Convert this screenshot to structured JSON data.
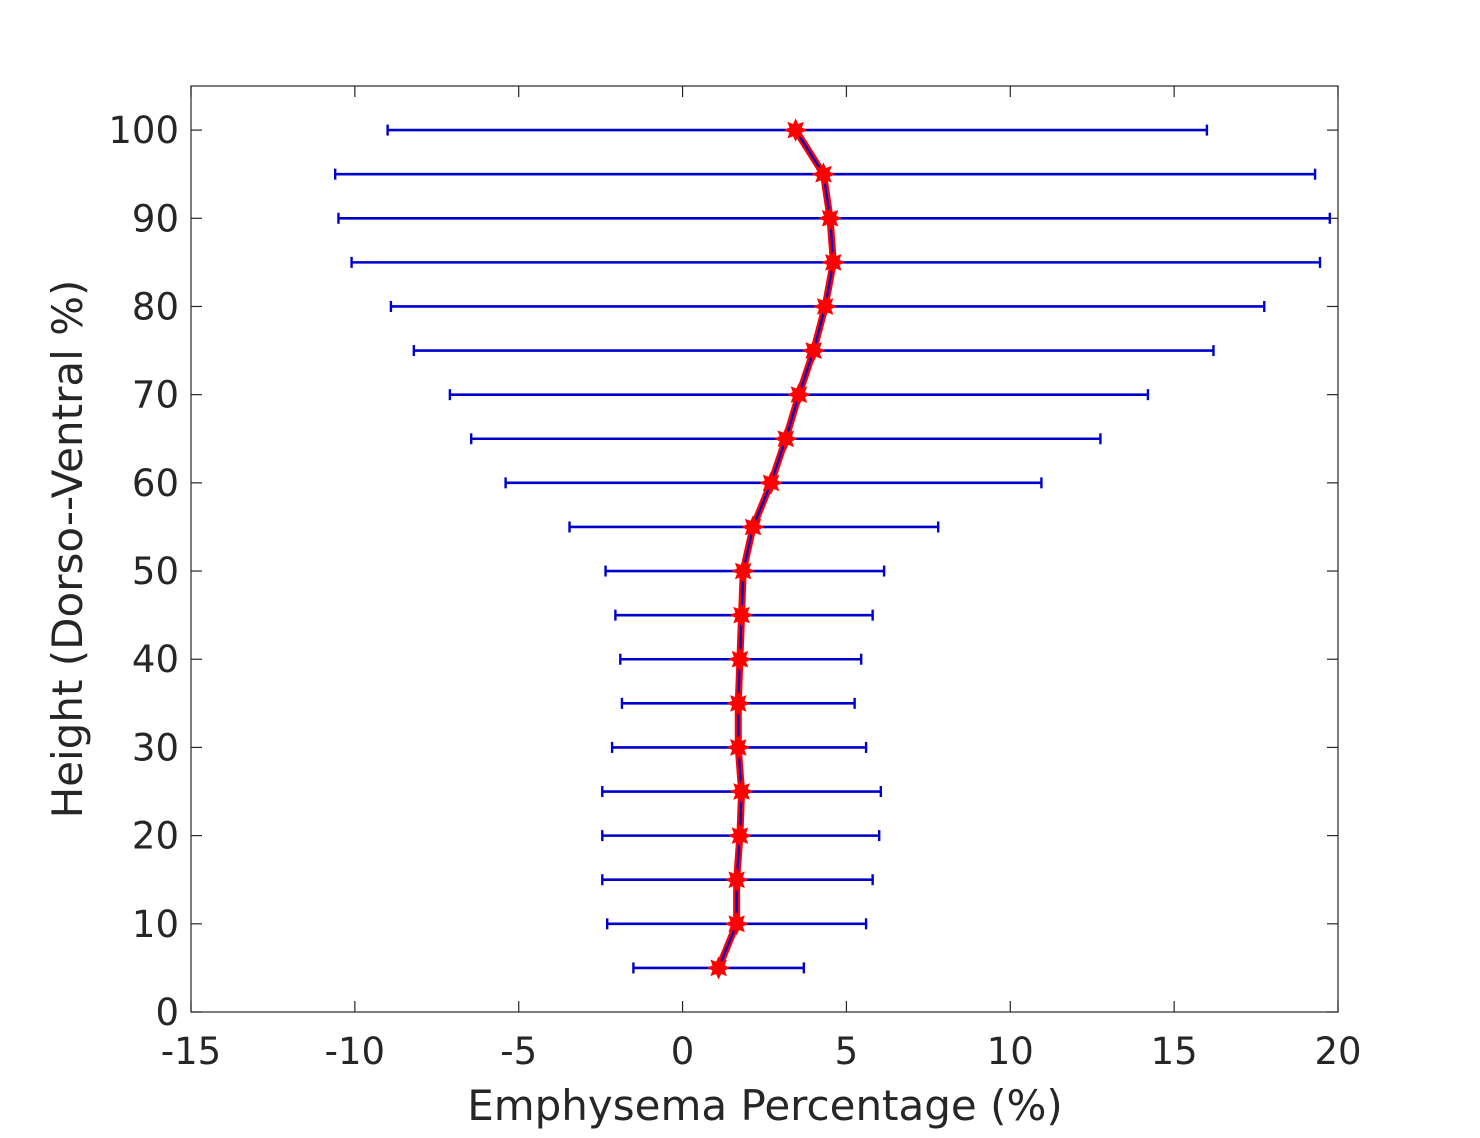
{
  "chart_data": {
    "type": "scatter",
    "title": "",
    "xlabel": "Emphysema Percentage (%)",
    "ylabel": "Height (Dorso--Ventral %)",
    "xlim": [
      -15,
      20
    ],
    "ylim": [
      0,
      105
    ],
    "xticks": [
      -15,
      -10,
      -5,
      0,
      5,
      10,
      15,
      20
    ],
    "yticks": [
      0,
      10,
      20,
      30,
      40,
      50,
      60,
      70,
      80,
      90,
      100
    ],
    "grid": false,
    "legend": "none",
    "colors": {
      "errorbar": "#0000cd",
      "line": "#0000cd",
      "marker": "#ff0000",
      "axis": "#262626"
    },
    "series": [
      {
        "height": [
          5,
          10,
          15,
          20,
          25,
          30,
          35,
          40,
          45,
          50,
          55,
          60,
          65,
          70,
          75,
          80,
          85,
          90,
          95,
          100
        ],
        "mean": [
          1.1,
          1.65,
          1.65,
          1.75,
          1.8,
          1.7,
          1.7,
          1.75,
          1.8,
          1.85,
          2.15,
          2.7,
          3.15,
          3.55,
          4.0,
          4.35,
          4.6,
          4.5,
          4.3,
          3.45
        ],
        "lower": [
          -1.5,
          -2.3,
          -2.45,
          -2.45,
          -2.45,
          -2.15,
          -1.85,
          -1.9,
          -2.05,
          -2.35,
          -3.45,
          -5.4,
          -6.45,
          -7.1,
          -8.2,
          -8.9,
          -10.1,
          -10.5,
          -10.6,
          -9.0
        ],
        "upper": [
          3.7,
          5.6,
          5.8,
          6.0,
          6.05,
          5.6,
          5.25,
          5.45,
          5.8,
          6.15,
          7.8,
          10.95,
          12.75,
          14.2,
          16.2,
          17.75,
          19.45,
          19.75,
          19.3,
          16.0
        ]
      }
    ]
  }
}
